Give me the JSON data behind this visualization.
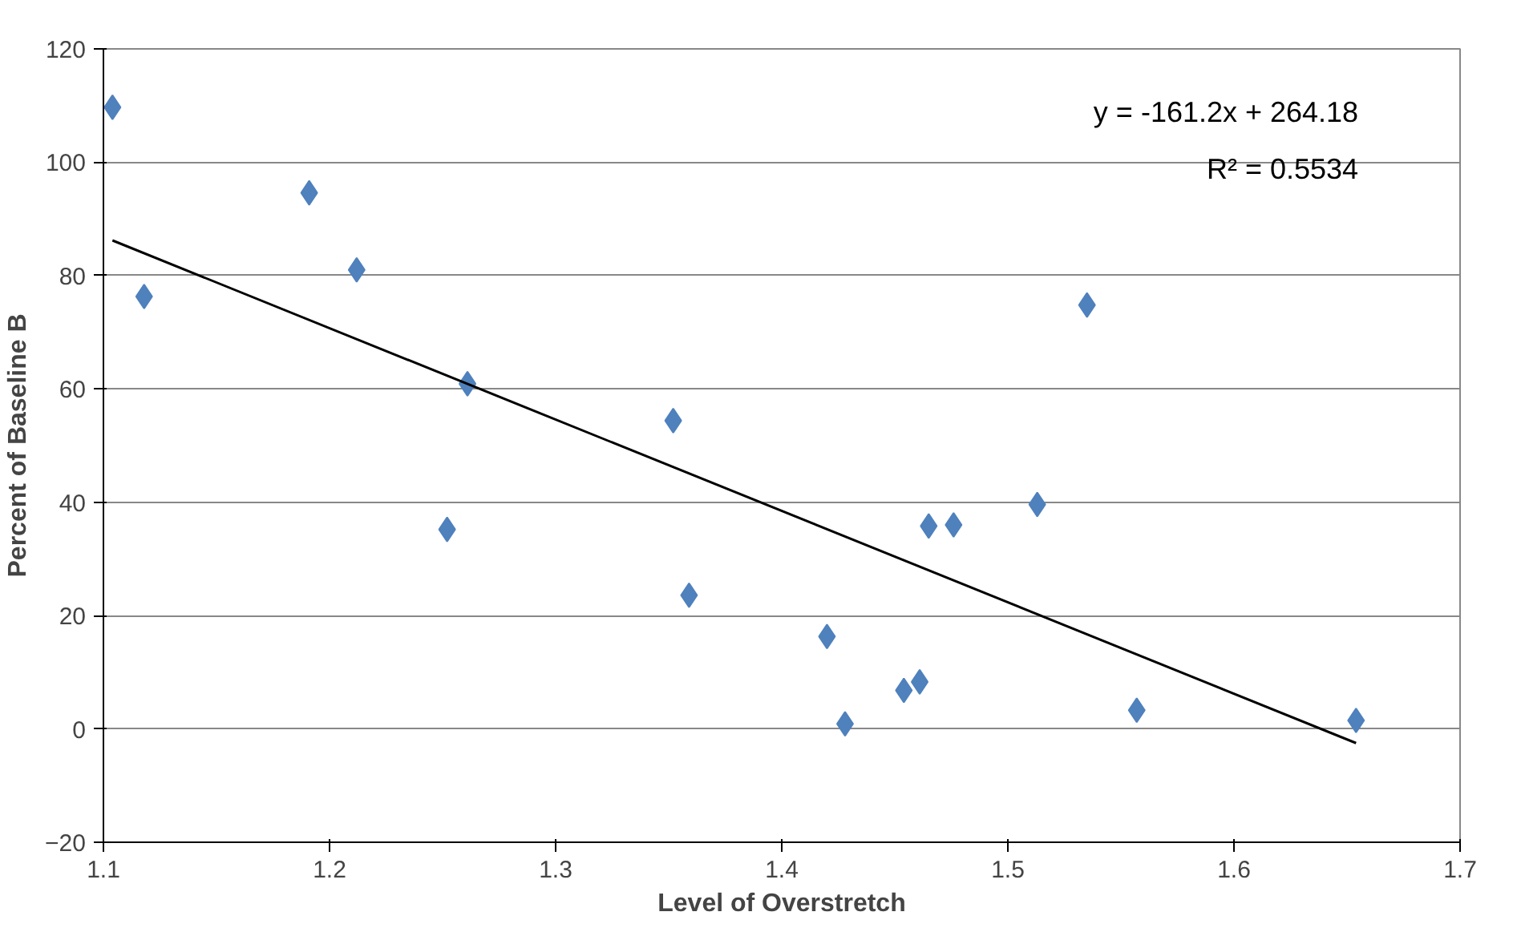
{
  "chart_data": {
    "type": "scatter",
    "xlabel": "Level of Overstretch",
    "ylabel": "Percent of Baseline B",
    "xlim": [
      1.1,
      1.7
    ],
    "xticks": [
      1.1,
      1.2,
      1.3,
      1.4,
      1.5,
      1.6,
      1.7
    ],
    "ylim": [
      -20,
      120
    ],
    "yticks": [
      -20,
      0,
      20,
      40,
      60,
      80,
      100,
      120
    ],
    "grid": "y",
    "marker": "diamond",
    "annotations": [
      "y = -161.2x + 264.18",
      "R² = 0.5534"
    ],
    "series": [
      {
        "color": "#4f81bd",
        "x": [
          1.104,
          1.118,
          1.191,
          1.212,
          1.252,
          1.261,
          1.352,
          1.359,
          1.42,
          1.428,
          1.454,
          1.461,
          1.465,
          1.476,
          1.513,
          1.535,
          1.557,
          1.654
        ],
        "values": [
          109.7,
          76.3,
          94.6,
          81,
          35.2,
          60.9,
          54.4,
          23.6,
          16.3,
          0.9,
          6.8,
          8.3,
          35.8,
          36,
          39.6,
          74.8,
          3.3,
          1.5
        ]
      },
      {
        "type": "line",
        "color": "#000000",
        "marker": "none",
        "x": [
          1.104,
          1.654
        ],
        "values": [
          86.2,
          -2.5
        ]
      }
    ]
  }
}
